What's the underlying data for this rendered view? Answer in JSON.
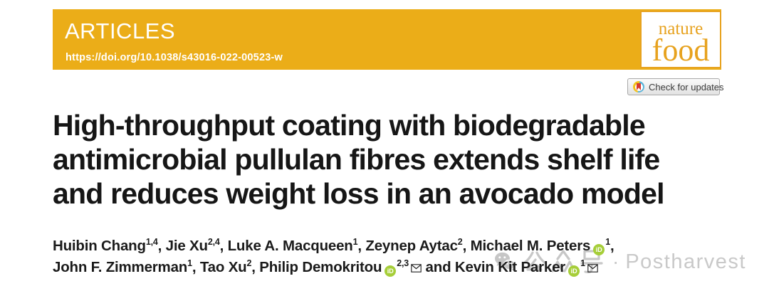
{
  "banner": {
    "category": "ARTICLES",
    "doi": "https://doi.org/10.1038/s43016-022-00523-w",
    "bg_color": "#EBAD18",
    "text_color": "#FFFFFF"
  },
  "journal_logo": {
    "line1": "nature",
    "line2": "food",
    "color": "#E7A21E"
  },
  "check_badge": {
    "label": "Check for updates",
    "icon": "crossmark-icon",
    "icon_colors": {
      "ring_left": "#F2C21C",
      "ring_right": "#58B2D8",
      "bookmark": "#D7372C"
    }
  },
  "title": {
    "lines": [
      "High-throughput coating with biodegradable",
      "antimicrobial pullulan fibres extends shelf life",
      "and reduces weight loss in an avocado model"
    ]
  },
  "authors": {
    "orcid_label": "iD",
    "orcid_color": "#A6CE39",
    "line1": [
      {
        "name": "Huibin Chang",
        "sup": "1,4",
        "sep": ", "
      },
      {
        "name": "Jie Xu",
        "sup": "2,4",
        "sep": ", "
      },
      {
        "name": "Luke A. Macqueen",
        "sup": "1",
        "sep": ", "
      },
      {
        "name": "Zeynep Aytac",
        "sup": "2",
        "sep": ", "
      },
      {
        "name": "Michael M. Peters",
        "orcid": true,
        "sup": "1",
        "sep": ","
      }
    ],
    "line2": [
      {
        "name": "John F. Zimmerman",
        "sup": "1",
        "sep": ", "
      },
      {
        "name": "Tao Xu",
        "sup": "2",
        "sep": ", "
      },
      {
        "name": "Philip Demokritou",
        "orcid": true,
        "sup": "2,3",
        "envelope": true,
        "sep": " and "
      },
      {
        "name": "Kevin Kit Parker",
        "orcid": true,
        "sup": "1",
        "envelope": true
      }
    ]
  },
  "watermark": {
    "icon": "wechat-icon",
    "cjk_text": "公众号",
    "separator": "·",
    "brand": "Postharvest",
    "color": "#C9C9C9"
  }
}
